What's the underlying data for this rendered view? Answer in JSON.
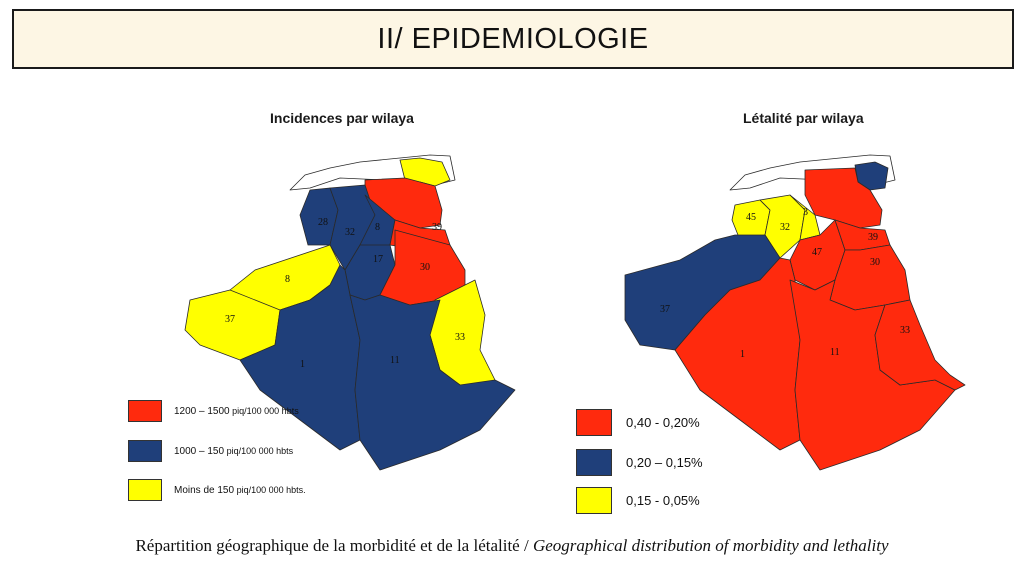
{
  "slide": {
    "title": "II/ EPIDEMIOLOGIE"
  },
  "colors": {
    "high": "#ff2a0d",
    "mid": "#1f3f7a",
    "low": "#ffff00",
    "none": "#ffffff",
    "border": "#2a2a2a"
  },
  "map_left": {
    "title": "Incidences par wilaya",
    "labels": [
      "28",
      "32",
      "8",
      "17",
      "39",
      "30",
      "37",
      "8",
      "33",
      "1",
      "11"
    ],
    "legend": [
      {
        "color_key": "high",
        "text_main": "1200 – 1500",
        "text_small": "piq/100 000 hbts"
      },
      {
        "color_key": "mid",
        "text_main": "1000 – 150",
        "text_small": "piq/100 000 hbts"
      },
      {
        "color_key": "low",
        "text_main": "Moins de 150",
        "text_small": "piq/100 000 hbts."
      }
    ]
  },
  "map_right": {
    "title": "Létalité par wilaya",
    "labels": [
      "45",
      "32",
      "3",
      "47",
      "39",
      "30",
      "37",
      "1",
      "11",
      "33"
    ],
    "legend": [
      {
        "color_key": "high",
        "text": "0,40 - 0,20%"
      },
      {
        "color_key": "mid",
        "text": "0,20 – 0,15%"
      },
      {
        "color_key": "low",
        "text": "0,15 - 0,05%"
      }
    ]
  },
  "caption": {
    "main": "Répartition géographique de la morbidité et de la létalité / ",
    "italic": "Geographical distribution of morbidity and lethality"
  }
}
